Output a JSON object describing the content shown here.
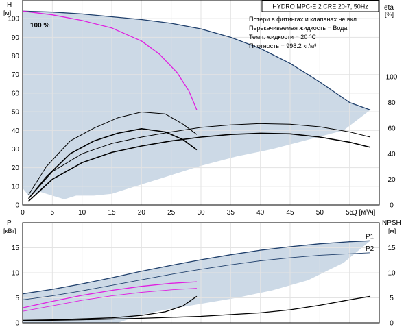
{
  "chart_data": [
    {
      "type": "line",
      "panel": "top",
      "title": "HYDRO MPC-E 2 CRE 20-7, 50Hz",
      "info_lines": [
        "Потери в фитингах и клапанах не вкл.",
        "Перекачиваемая жидкость = Вода",
        "Темп. жидкости = 20 °C",
        "Плотность = 998.2 кг/м³"
      ],
      "ylabel": "H",
      "yunit": "[м]",
      "y2label": "eta",
      "y2unit": "[%]",
      "xlabel": "Q [м³/ч]",
      "xlim": [
        0,
        60
      ],
      "ylim": [
        0,
        110
      ],
      "y2lim": [
        0,
        160
      ],
      "xticks": [
        0,
        5,
        10,
        15,
        20,
        25,
        30,
        35,
        40,
        45,
        50,
        55
      ],
      "yticks": [
        0,
        10,
        20,
        30,
        40,
        50,
        60,
        70,
        80,
        90,
        100
      ],
      "y2ticks": [
        0,
        20,
        40,
        60,
        80,
        100
      ],
      "annotation": "100 %",
      "grid": true,
      "series": [
        {
          "role": "range",
          "axis": "y",
          "color": "#ccd9e6",
          "points": [
            [
              0,
              104
            ],
            [
              5,
              103.5
            ],
            [
              10,
              102.5
            ],
            [
              15,
              101
            ],
            [
              20,
              99.5
            ],
            [
              25,
              97.5
            ],
            [
              30,
              94.5
            ],
            [
              35,
              90
            ],
            [
              40,
              84
            ],
            [
              45,
              76
            ],
            [
              50,
              66
            ],
            [
              55,
              55
            ],
            [
              58.5,
              51
            ],
            [
              54,
              40
            ],
            [
              48,
              35
            ],
            [
              42,
              30
            ],
            [
              36,
              26
            ],
            [
              30,
              21
            ],
            [
              24,
              15
            ],
            [
              18,
              9
            ],
            [
              15,
              6
            ],
            [
              12,
              5
            ],
            [
              9,
              5
            ],
            [
              7,
              3
            ],
            [
              5,
              5
            ],
            [
              3,
              7
            ],
            [
              1,
              5
            ],
            [
              0,
              9
            ]
          ]
        },
        {
          "role": "H",
          "axis": "y",
          "color": "#1f3f6b",
          "width": 1.3,
          "points": [
            [
              0,
              104
            ],
            [
              5,
              103.5
            ],
            [
              10,
              102.5
            ],
            [
              15,
              101
            ],
            [
              20,
              99.5
            ],
            [
              25,
              97.5
            ],
            [
              30,
              94.5
            ],
            [
              35,
              90
            ],
            [
              40,
              84
            ],
            [
              45,
              76
            ],
            [
              50,
              66
            ],
            [
              55,
              55
            ],
            [
              58.5,
              51
            ]
          ]
        },
        {
          "role": "H",
          "axis": "y",
          "color": "#e020e0",
          "width": 1.3,
          "points": [
            [
              0,
              104
            ],
            [
              5,
              102
            ],
            [
              10,
              99
            ],
            [
              15,
              95
            ],
            [
              20,
              88
            ],
            [
              23,
              81
            ],
            [
              26,
              71
            ],
            [
              28,
              61
            ],
            [
              29.3,
              51
            ]
          ]
        },
        {
          "role": "eta",
          "axis": "y2",
          "color": "#000000",
          "width": 1.0,
          "points": [
            [
              1,
              8
            ],
            [
              4,
              30
            ],
            [
              8,
              50
            ],
            [
              12,
              60
            ],
            [
              16,
              68
            ],
            [
              20,
              72.5
            ],
            [
              24,
              71
            ],
            [
              27,
              63
            ],
            [
              29.3,
              55
            ]
          ]
        },
        {
          "role": "eta",
          "axis": "y2",
          "color": "#000000",
          "width": 1.6,
          "points": [
            [
              1,
              5
            ],
            [
              4,
              22
            ],
            [
              8,
              40
            ],
            [
              12,
              50
            ],
            [
              16,
              56
            ],
            [
              20,
              59.5
            ],
            [
              24,
              57
            ],
            [
              27,
              51
            ],
            [
              29.3,
              43
            ]
          ]
        },
        {
          "role": "eta",
          "axis": "y2",
          "color": "#000000",
          "width": 1.0,
          "points": [
            [
              1,
              5
            ],
            [
              5,
              26
            ],
            [
              10,
              40
            ],
            [
              15,
              48
            ],
            [
              20,
              53
            ],
            [
              25,
              57
            ],
            [
              30,
              60.5
            ],
            [
              35,
              62.5
            ],
            [
              40,
              63.5
            ],
            [
              45,
              63
            ],
            [
              50,
              61
            ],
            [
              55,
              57
            ],
            [
              58.5,
              53
            ]
          ]
        },
        {
          "role": "eta",
          "axis": "y2",
          "color": "#000000",
          "width": 1.6,
          "points": [
            [
              1,
              3
            ],
            [
              5,
              20
            ],
            [
              10,
              33
            ],
            [
              15,
              41
            ],
            [
              20,
              46
            ],
            [
              25,
              50
            ],
            [
              30,
              53
            ],
            [
              35,
              55
            ],
            [
              40,
              56
            ],
            [
              45,
              55.5
            ],
            [
              50,
              53
            ],
            [
              55,
              49
            ],
            [
              58.5,
              45
            ]
          ]
        }
      ]
    },
    {
      "type": "line",
      "panel": "bottom",
      "ylabel": "P",
      "yunit": "[кВт]",
      "y2label": "NPSH",
      "y2unit": "[м]",
      "xlim": [
        0,
        60
      ],
      "ylim": [
        0,
        20
      ],
      "y2lim": [
        0,
        20
      ],
      "xticks": [
        0,
        5,
        10,
        15,
        20,
        25,
        30,
        35,
        40,
        45,
        50,
        55
      ],
      "yticks": [
        0,
        5,
        10,
        15
      ],
      "y2ticks": [
        0,
        5,
        10,
        15
      ],
      "grid": true,
      "series": [
        {
          "role": "range",
          "axis": "y",
          "color": "#ccd9e6",
          "points": [
            [
              0,
              5.8
            ],
            [
              5,
              6.7
            ],
            [
              10,
              7.8
            ],
            [
              15,
              9.0
            ],
            [
              20,
              10.3
            ],
            [
              25,
              11.5
            ],
            [
              30,
              12.6
            ],
            [
              35,
              13.6
            ],
            [
              40,
              14.5
            ],
            [
              45,
              15.2
            ],
            [
              50,
              15.8
            ],
            [
              55,
              16.2
            ],
            [
              58.5,
              16.4
            ],
            [
              54,
              12
            ],
            [
              48,
              8.5
            ],
            [
              42,
              6.5
            ],
            [
              36,
              5
            ],
            [
              30,
              3.8
            ],
            [
              24,
              2.6
            ],
            [
              20,
              1.6
            ],
            [
              18,
              0.8
            ],
            [
              16,
              0
            ],
            [
              0,
              0
            ]
          ]
        },
        {
          "role": "P",
          "axis": "y",
          "name": "P1",
          "color": "#1f3f6b",
          "width": 1.3,
          "points": [
            [
              0,
              5.8
            ],
            [
              5,
              6.7
            ],
            [
              10,
              7.8
            ],
            [
              15,
              9.0
            ],
            [
              20,
              10.3
            ],
            [
              25,
              11.5
            ],
            [
              30,
              12.6
            ],
            [
              35,
              13.6
            ],
            [
              40,
              14.5
            ],
            [
              45,
              15.2
            ],
            [
              50,
              15.8
            ],
            [
              55,
              16.2
            ],
            [
              58.5,
              16.4
            ]
          ]
        },
        {
          "role": "P",
          "axis": "y",
          "name": "P2",
          "color": "#1f3f6b",
          "width": 0.9,
          "points": [
            [
              0,
              4.6
            ],
            [
              5,
              5.4
            ],
            [
              10,
              6.4
            ],
            [
              15,
              7.5
            ],
            [
              20,
              8.6
            ],
            [
              25,
              9.7
            ],
            [
              30,
              10.7
            ],
            [
              35,
              11.6
            ],
            [
              40,
              12.4
            ],
            [
              45,
              13.0
            ],
            [
              50,
              13.5
            ],
            [
              55,
              13.8
            ],
            [
              58.5,
              14.0
            ]
          ]
        },
        {
          "role": "P",
          "axis": "y",
          "color": "#e020e0",
          "width": 1.3,
          "points": [
            [
              0,
              3.0
            ],
            [
              5,
              4.3
            ],
            [
              10,
              5.5
            ],
            [
              15,
              6.5
            ],
            [
              20,
              7.3
            ],
            [
              25,
              7.9
            ],
            [
              29.3,
              8.2
            ]
          ]
        },
        {
          "role": "P",
          "axis": "y",
          "color": "#e020e0",
          "width": 0.9,
          "points": [
            [
              0,
              2.3
            ],
            [
              5,
              3.4
            ],
            [
              10,
              4.5
            ],
            [
              15,
              5.4
            ],
            [
              20,
              6.1
            ],
            [
              25,
              6.6
            ],
            [
              29.3,
              6.9
            ]
          ]
        },
        {
          "role": "NPSH",
          "axis": "y2",
          "color": "#000000",
          "width": 1.3,
          "points": [
            [
              0,
              0.5
            ],
            [
              5,
              0.6
            ],
            [
              10,
              0.8
            ],
            [
              15,
              1.0
            ],
            [
              20,
              1.5
            ],
            [
              24,
              2.2
            ],
            [
              27,
              3.4
            ],
            [
              29.3,
              5.3
            ]
          ]
        },
        {
          "role": "NPSH",
          "axis": "y2",
          "color": "#000000",
          "width": 1.3,
          "points": [
            [
              0,
              0.4
            ],
            [
              10,
              0.6
            ],
            [
              20,
              0.9
            ],
            [
              30,
              1.3
            ],
            [
              40,
              2.0
            ],
            [
              45,
              2.6
            ],
            [
              50,
              3.5
            ],
            [
              55,
              4.6
            ],
            [
              58.5,
              5.3
            ]
          ]
        }
      ]
    }
  ]
}
